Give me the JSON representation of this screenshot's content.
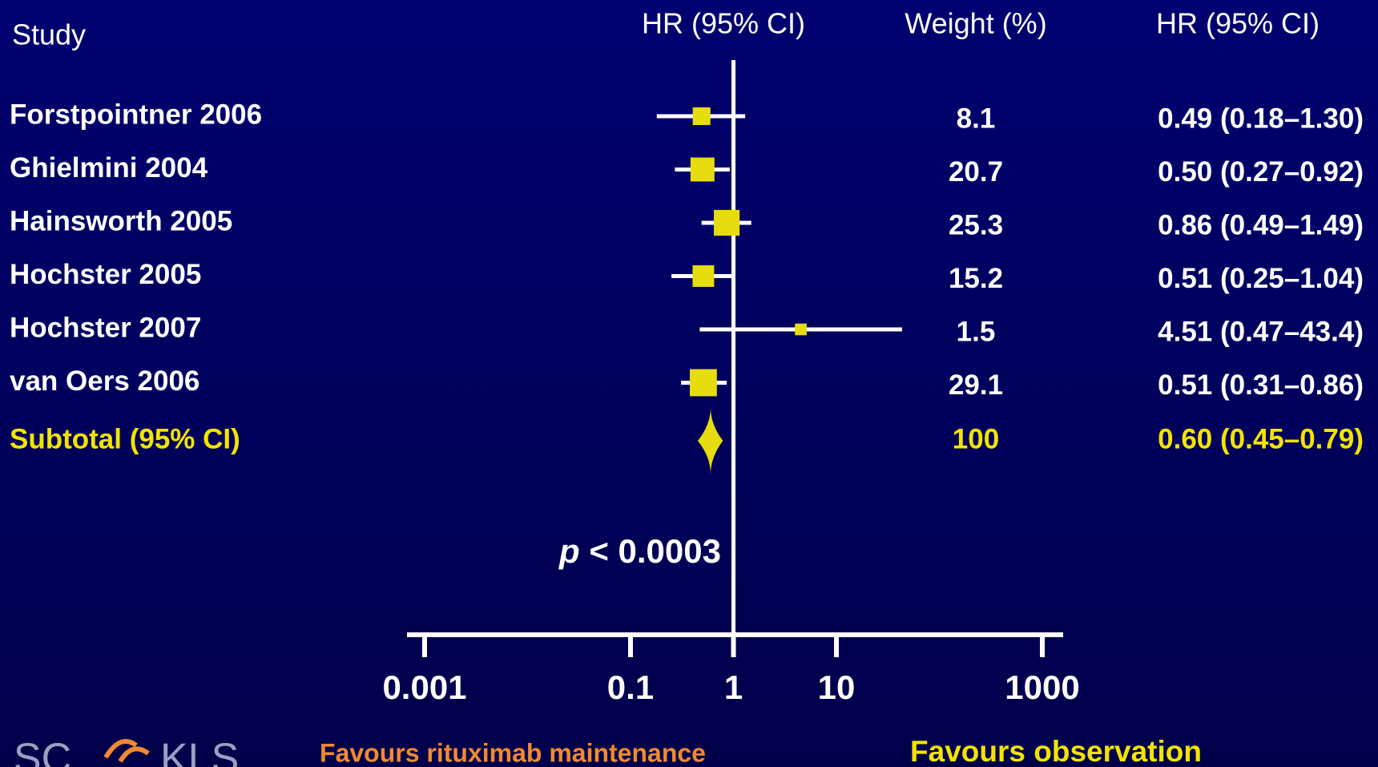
{
  "chart_data": {
    "type": "forest",
    "headers": {
      "study": "Study",
      "plot": "HR (95% CI)",
      "weight": "Weight (%)",
      "estimate": "HR (95% CI)"
    },
    "studies": [
      {
        "name": "Forstpointner 2006",
        "hr": 0.49,
        "ci_low": 0.18,
        "ci_high": 1.3,
        "weight": 8.1,
        "label": "0.49 (0.18–1.30)"
      },
      {
        "name": "Ghielmini 2004",
        "hr": 0.5,
        "ci_low": 0.27,
        "ci_high": 0.92,
        "weight": 20.7,
        "label": "0.50 (0.27–0.92)"
      },
      {
        "name": "Hainsworth 2005",
        "hr": 0.86,
        "ci_low": 0.49,
        "ci_high": 1.49,
        "weight": 25.3,
        "label": "0.86 (0.49–1.49)"
      },
      {
        "name": "Hochster 2005",
        "hr": 0.51,
        "ci_low": 0.25,
        "ci_high": 1.04,
        "weight": 15.2,
        "label": "0.51 (0.25–1.04)"
      },
      {
        "name": "Hochster 2007",
        "hr": 4.51,
        "ci_low": 0.47,
        "ci_high": 43.4,
        "weight": 1.5,
        "label": "4.51 (0.47–43.4)"
      },
      {
        "name": "van Oers 2006",
        "hr": 0.51,
        "ci_low": 0.31,
        "ci_high": 0.86,
        "weight": 29.1,
        "label": "0.51 (0.31–0.86)"
      }
    ],
    "subtotal": {
      "name": "Subtotal (95% CI)",
      "hr": 0.6,
      "ci_low": 0.45,
      "ci_high": 0.79,
      "weight": 100,
      "label": "0.60 (0.45–0.79)"
    },
    "p_value": {
      "symbol": "p",
      "text": "< 0.0003"
    },
    "log_scale": true,
    "xlim": [
      0.001,
      1000
    ],
    "xticks": [
      0.001,
      0.1,
      1,
      10,
      1000
    ],
    "reference_line": 1,
    "favours_left": "Favours rituximab maintenance",
    "favours_right": "Favours observation",
    "marker_color": "#e6dc10",
    "logo": {
      "left": "LSC",
      "right": "KLS"
    }
  }
}
